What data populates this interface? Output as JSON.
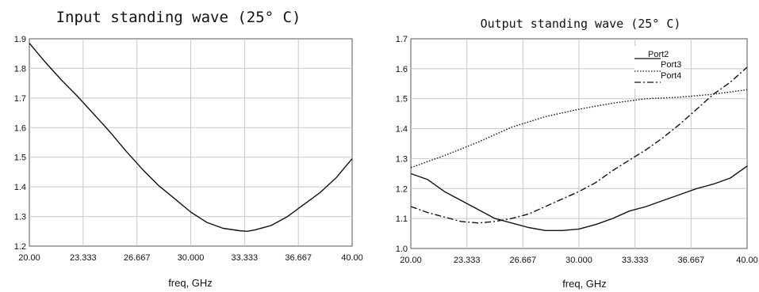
{
  "chart_data": [
    {
      "type": "line",
      "title": "Input standing wave (25° C)",
      "xlabel": "freq, GHz",
      "ylabel": "",
      "xlim": [
        20,
        40
      ],
      "ylim": [
        1.2,
        1.9
      ],
      "x_ticks": [
        "20.00",
        "23.333",
        "26.667",
        "30.000",
        "33.333",
        "36.667",
        "40.00"
      ],
      "y_ticks": [
        "1.2",
        "1.3",
        "1.4",
        "1.5",
        "1.6",
        "1.7",
        "1.8",
        "1.9"
      ],
      "grid": true,
      "series": [
        {
          "style": "solid",
          "x": [
            20.0,
            21.0,
            22.0,
            23.0,
            24.0,
            25.0,
            26.0,
            27.0,
            28.0,
            29.0,
            30.0,
            31.0,
            32.0,
            33.0,
            33.5,
            34.0,
            35.0,
            36.0,
            37.0,
            38.0,
            39.0,
            40.0
          ],
          "y": [
            1.885,
            1.82,
            1.76,
            1.705,
            1.645,
            1.585,
            1.52,
            1.46,
            1.405,
            1.36,
            1.315,
            1.28,
            1.26,
            1.252,
            1.25,
            1.255,
            1.27,
            1.3,
            1.34,
            1.38,
            1.43,
            1.495
          ]
        }
      ]
    },
    {
      "type": "line",
      "title": "Output standing wave (25° C)",
      "xlabel": "freq, GHz",
      "ylabel": "",
      "xlim": [
        20,
        40
      ],
      "ylim": [
        1.0,
        1.7
      ],
      "x_ticks": [
        "20.00",
        "23.333",
        "26.667",
        "30.000",
        "33.333",
        "36.667",
        "40.00"
      ],
      "y_ticks": [
        "1.0",
        "1.1",
        "1.2",
        "1.3",
        "1.4",
        "1.5",
        "1.6",
        "1.7"
      ],
      "grid": true,
      "legend_position": "top-right",
      "series": [
        {
          "name": "Port2",
          "style": "solid",
          "x": [
            20.0,
            21.0,
            22.0,
            23.0,
            24.0,
            25.0,
            26.0,
            27.0,
            28.0,
            29.0,
            30.0,
            31.0,
            32.0,
            33.0,
            34.0,
            35.0,
            36.0,
            37.0,
            38.0,
            39.0,
            40.0
          ],
          "y": [
            1.25,
            1.23,
            1.19,
            1.16,
            1.13,
            1.1,
            1.085,
            1.07,
            1.06,
            1.06,
            1.065,
            1.08,
            1.1,
            1.125,
            1.14,
            1.16,
            1.18,
            1.2,
            1.215,
            1.235,
            1.275
          ]
        },
        {
          "name": "Port3",
          "style": "dotted",
          "x": [
            20.0,
            22.0,
            24.0,
            26.0,
            28.0,
            30.0,
            32.0,
            34.0,
            36.0,
            38.0,
            40.0
          ],
          "y": [
            1.27,
            1.31,
            1.355,
            1.405,
            1.44,
            1.465,
            1.485,
            1.5,
            1.505,
            1.515,
            1.53
          ]
        },
        {
          "name": "Port4",
          "style": "dashdot",
          "x": [
            20.0,
            21.0,
            22.0,
            23.0,
            24.0,
            25.0,
            26.0,
            27.0,
            28.0,
            29.0,
            30.0,
            31.0,
            32.0,
            33.0,
            34.0,
            35.0,
            36.0,
            37.0,
            38.0,
            39.0,
            40.0
          ],
          "y": [
            1.14,
            1.12,
            1.105,
            1.09,
            1.085,
            1.09,
            1.1,
            1.115,
            1.14,
            1.165,
            1.19,
            1.22,
            1.26,
            1.295,
            1.33,
            1.37,
            1.415,
            1.465,
            1.515,
            1.555,
            1.605
          ]
        }
      ]
    }
  ]
}
